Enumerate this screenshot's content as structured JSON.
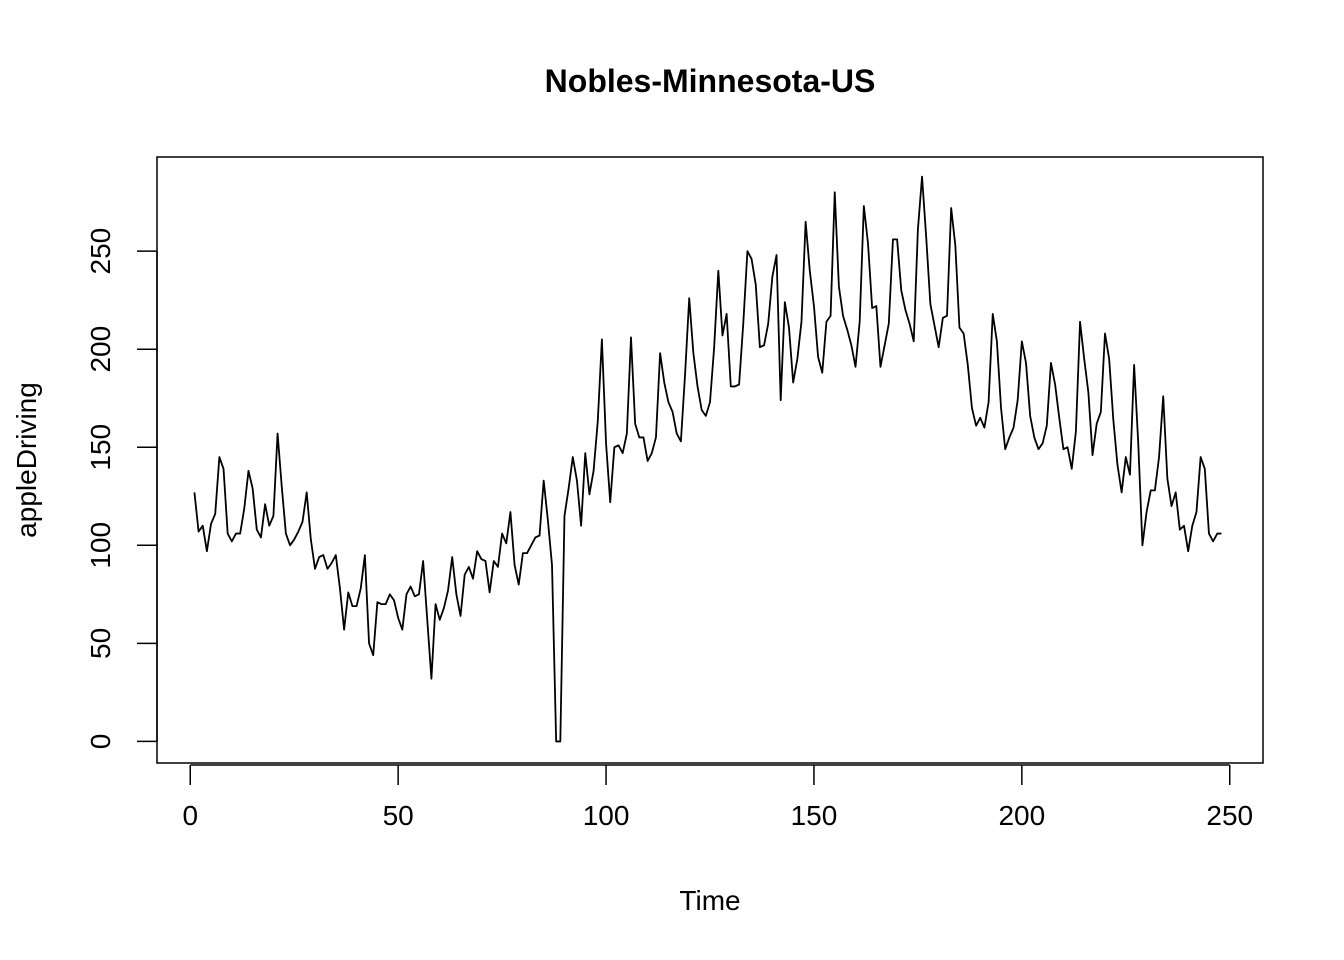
{
  "chart_data": {
    "type": "line",
    "title": "Nobles-Minnesota-US",
    "xlabel": "Time",
    "ylabel": "appleDriving",
    "xlim": [
      -8,
      258
    ],
    "ylim": [
      -11,
      298
    ],
    "xticks": [
      0,
      50,
      100,
      150,
      200,
      250
    ],
    "yticks": [
      0,
      50,
      100,
      150,
      200,
      250
    ],
    "grid": false,
    "series": [
      {
        "x": [
          1,
          2,
          3,
          4,
          5,
          6,
          7,
          8,
          9,
          10,
          11,
          12,
          13,
          14,
          15,
          16,
          17,
          18,
          19,
          20,
          21,
          22,
          23,
          24,
          25,
          26,
          27,
          28,
          29,
          30,
          31,
          32,
          33,
          34,
          35,
          36,
          37,
          38,
          39,
          40,
          41,
          42,
          43,
          44,
          45,
          46,
          47,
          48,
          49,
          50,
          51,
          52,
          53,
          54,
          55,
          56,
          57,
          58,
          59,
          60,
          61,
          62,
          63,
          64,
          65,
          66,
          67,
          68,
          69,
          70,
          71,
          72,
          73,
          74,
          75,
          76,
          77,
          78,
          79,
          80,
          81,
          82,
          83,
          84,
          85,
          86,
          87,
          88,
          89,
          90,
          91,
          92,
          93,
          94,
          95,
          96,
          97,
          98,
          99,
          100,
          101,
          102,
          103,
          104,
          105,
          106,
          107,
          108,
          109,
          110,
          111,
          112,
          113,
          114,
          115,
          116,
          117,
          118,
          119,
          120,
          121,
          122,
          123,
          124,
          125,
          126,
          127,
          128,
          129,
          130,
          131,
          132,
          133,
          134,
          135,
          136,
          137,
          138,
          139,
          140,
          141,
          142,
          143,
          144,
          145,
          146,
          147,
          148,
          149,
          150,
          151,
          152,
          153,
          154,
          155,
          156,
          157,
          158,
          159,
          160,
          161,
          162,
          163,
          164,
          165,
          166,
          167,
          168,
          169,
          170,
          171,
          172,
          173,
          174,
          175,
          176,
          177,
          178,
          179,
          180,
          181,
          182,
          183,
          184,
          185,
          186,
          187,
          188,
          189,
          190,
          191,
          192,
          193,
          194,
          195,
          196,
          197,
          198,
          199,
          200,
          201,
          202,
          203,
          204,
          205,
          206,
          207,
          208,
          209,
          210,
          211,
          212,
          213,
          214,
          215,
          216,
          217,
          218,
          219,
          220,
          221,
          222,
          223,
          224,
          225,
          226,
          227,
          228,
          229,
          230,
          231,
          232,
          233,
          234,
          235,
          236,
          237,
          238,
          239,
          240,
          241,
          242,
          243,
          244,
          245,
          246,
          247,
          248
        ],
        "values": [
          127,
          107,
          110,
          97,
          111,
          116,
          145,
          139,
          106,
          102,
          106,
          106,
          119,
          138,
          129,
          108,
          104,
          121,
          110,
          115,
          157,
          130,
          106,
          100,
          103,
          107,
          112,
          127,
          103,
          88,
          94,
          95,
          88,
          91,
          95,
          78,
          57,
          76,
          69,
          69,
          78,
          95,
          50,
          44,
          71,
          70,
          70,
          75,
          72,
          63,
          57,
          75,
          79,
          74,
          75,
          92,
          62,
          32,
          70,
          62,
          68,
          77,
          94,
          75,
          64,
          85,
          89,
          83,
          97,
          93,
          92,
          76,
          92,
          89,
          106,
          101,
          117,
          90,
          80,
          96,
          96,
          100,
          104,
          105,
          133,
          113,
          90,
          0,
          0,
          115,
          129,
          145,
          133,
          110,
          147,
          126,
          138,
          163,
          205,
          152,
          122,
          150,
          151,
          147,
          157,
          206,
          162,
          155,
          155,
          143,
          147,
          155,
          198,
          183,
          173,
          168,
          157,
          153,
          187,
          226,
          198,
          181,
          169,
          166,
          173,
          201,
          240,
          207,
          218,
          181,
          181,
          182,
          213,
          250,
          246,
          233,
          201,
          202,
          213,
          237,
          248,
          174,
          224,
          211,
          183,
          195,
          214,
          265,
          240,
          222,
          196,
          188,
          214,
          217,
          280,
          232,
          217,
          210,
          202,
          191,
          214,
          273,
          254,
          221,
          222,
          191,
          202,
          213,
          256,
          256,
          230,
          220,
          213,
          204,
          261,
          288,
          257,
          223,
          212,
          201,
          216,
          217,
          272,
          253,
          211,
          208,
          192,
          170,
          161,
          165,
          160,
          173,
          218,
          204,
          170,
          149,
          155,
          160,
          174,
          204,
          193,
          166,
          155,
          149,
          152,
          161,
          193,
          182,
          165,
          149,
          150,
          139,
          158,
          214,
          195,
          178,
          146,
          162,
          168,
          208,
          195,
          164,
          141,
          127,
          145,
          136,
          192,
          152,
          100,
          117,
          128,
          128,
          145,
          176,
          134,
          120,
          127,
          108,
          110,
          97,
          110,
          117,
          145,
          139,
          106,
          102,
          106,
          106
        ]
      }
    ]
  }
}
